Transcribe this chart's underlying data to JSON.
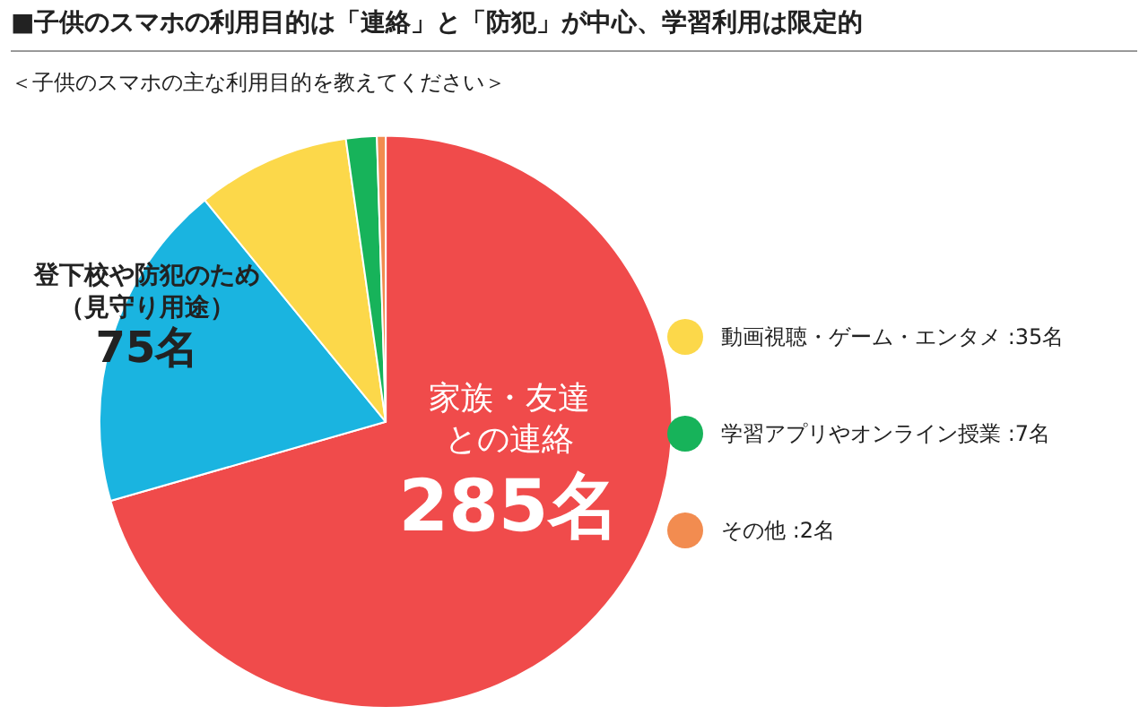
{
  "chart_data": {
    "type": "pie",
    "title": "■子供のスマホの利用目的は「連絡」と「防犯」が中心、学習利用は限定的",
    "subtitle": "＜子供のスマホの主な利用目的を教えてください＞",
    "categories": [
      "家族・友達との連絡",
      "登下校や防犯のため（見守り用途）",
      "動画視聴・ゲーム・エンタメ",
      "学習アプリやオンライン授業",
      "その他"
    ],
    "values": [
      285,
      75,
      35,
      7,
      2
    ],
    "value_labels": [
      "285名",
      "75名",
      "35名",
      "7名",
      "2名"
    ],
    "colors": [
      "#f04b4b",
      "#1ab4e0",
      "#fcd84a",
      "#17b35a",
      "#f28c50"
    ],
    "legend": "right"
  }
}
